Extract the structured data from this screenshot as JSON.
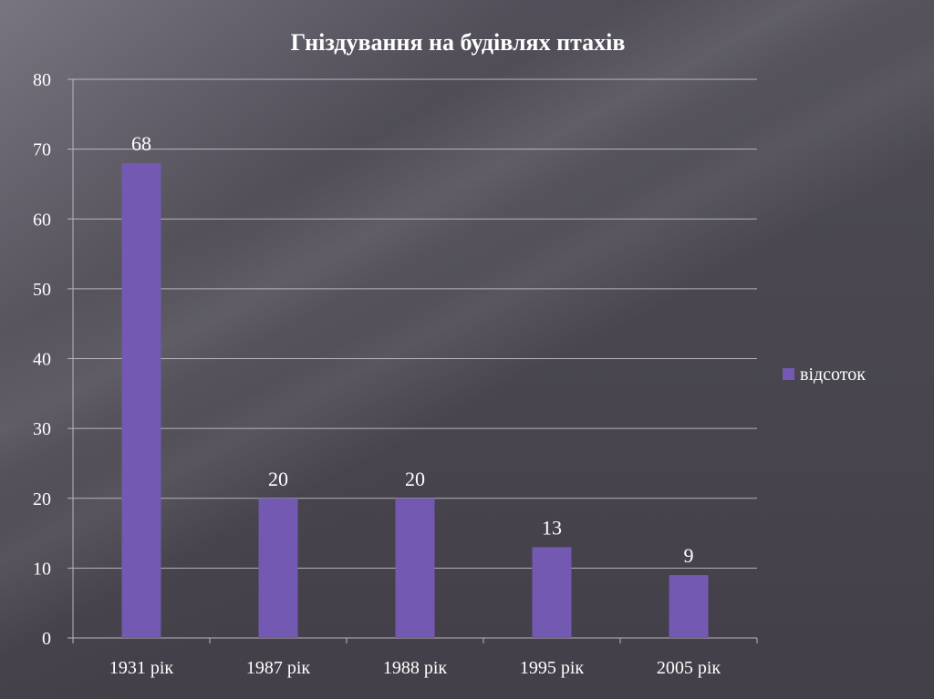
{
  "chart_data": {
    "type": "bar",
    "title": "Гніздування на будівлях птахів",
    "xlabel": "",
    "ylabel": "",
    "categories": [
      "1931 рік",
      "1987 рік",
      "1988 рік",
      "1995 рік",
      "2005 рік"
    ],
    "series": [
      {
        "name": "відсоток",
        "values": [
          68,
          20,
          20,
          13,
          9
        ],
        "data_labels": [
          "68",
          "20",
          "20",
          "13",
          "9"
        ],
        "color": "#7359b2"
      }
    ],
    "ylim": [
      0,
      80
    ],
    "y_ticks": [
      "0",
      "10",
      "20",
      "30",
      "40",
      "50",
      "60",
      "70",
      "80"
    ],
    "grid": true,
    "legend_position": "right"
  },
  "colors": {
    "bar": "#7359b2",
    "text": "#ffffff",
    "gridline": "#c9c6cf",
    "axis": "#b9b6bf"
  }
}
